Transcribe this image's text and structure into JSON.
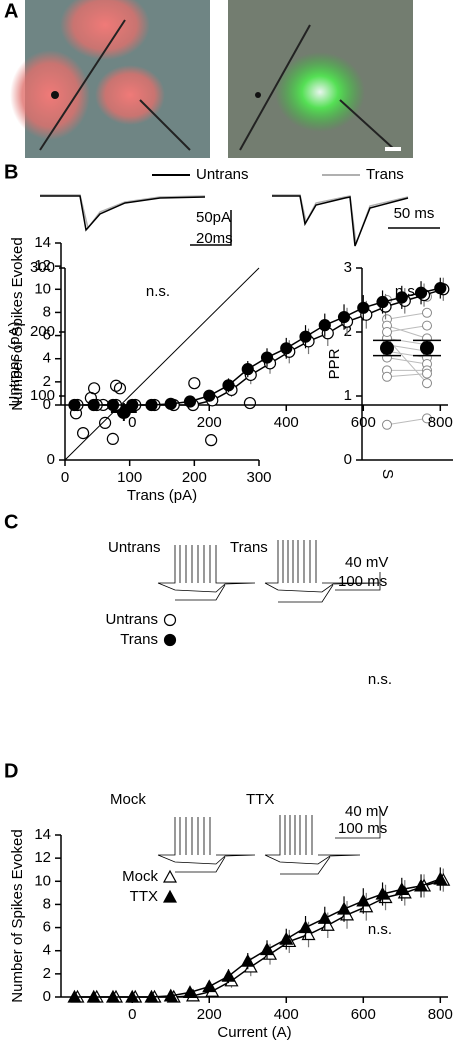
{
  "panel_labels": [
    "A",
    "B",
    "C",
    "D"
  ],
  "chart_data": [
    {
      "type": "traces",
      "series": [
        {
          "name": "Untrans",
          "color": "#000000"
        },
        {
          "name": "Trans",
          "color": "#b0b0b0"
        }
      ],
      "scale_labels": [
        "50pA",
        "20ms",
        "50 ms"
      ]
    },
    {
      "type": "scatter",
      "annotation": "n.s.",
      "xlabel": "Trans (pA)",
      "ylabel": "Untrans (pA)",
      "xlim": [
        0,
        300
      ],
      "ylim": [
        0,
        300
      ],
      "xticks": [
        0,
        100,
        200,
        300
      ],
      "yticks": [
        0,
        100,
        200,
        300
      ],
      "x": [
        17,
        28,
        40,
        45,
        59,
        62,
        74,
        79,
        85,
        200,
        226,
        286
      ],
      "values": [
        73,
        42,
        97,
        112,
        86,
        58,
        33,
        116,
        112,
        120,
        31,
        89
      ],
      "mean": {
        "x": 91,
        "y": 75,
        "xerr": 20,
        "yerr": 14
      }
    },
    {
      "type": "paired",
      "annotation": "n.s.",
      "ylabel": "PPR",
      "categories": [
        "S",
        null
      ],
      "ylim": [
        0,
        3
      ],
      "yticks": [
        0,
        1,
        2,
        3
      ],
      "pairs": [
        [
          2.5,
          2.55
        ],
        [
          2.2,
          2.3
        ],
        [
          2.1,
          1.9
        ],
        [
          1.9,
          1.8
        ],
        [
          1.8,
          1.7
        ],
        [
          1.7,
          1.6
        ],
        [
          1.6,
          1.5
        ],
        [
          1.4,
          1.4
        ],
        [
          1.3,
          1.35
        ],
        [
          1.9,
          1.2
        ],
        [
          0.55,
          0.65
        ],
        [
          2.0,
          2.1
        ]
      ],
      "means": [
        1.75,
        1.75
      ],
      "errors": [
        0.12,
        0.12
      ]
    },
    {
      "type": "line",
      "annotation": "n.s.",
      "ylabel": "Number of Spikes Evoked",
      "xlim": [
        -185,
        820
      ],
      "ylim": [
        0,
        14
      ],
      "xticks": [
        0,
        200,
        400,
        600,
        800
      ],
      "yticks": [
        0,
        2,
        4,
        6,
        8,
        10,
        12,
        14
      ],
      "inset_labels": [
        "Untrans",
        "Trans"
      ],
      "scale_labels": [
        "40 mV",
        "100 ms"
      ],
      "x": [
        -150,
        -100,
        -50,
        0,
        50,
        100,
        150,
        200,
        250,
        300,
        350,
        400,
        450,
        500,
        550,
        600,
        650,
        700,
        750,
        800
      ],
      "series": [
        {
          "name": "Untrans",
          "marker": "circle",
          "filled": false,
          "values": [
            0,
            0,
            0,
            0,
            0,
            0,
            0,
            0.4,
            1.3,
            2.6,
            3.6,
            4.6,
            5.5,
            6.2,
            7.2,
            7.8,
            8.5,
            9.0,
            9.5,
            10.0
          ],
          "errors": [
            0,
            0,
            0,
            0,
            0,
            0,
            0.1,
            0.4,
            0.6,
            0.8,
            0.9,
            1.0,
            1.1,
            1.1,
            1.2,
            1.2,
            1.1,
            1.1,
            1.0,
            1.0
          ]
        },
        {
          "name": "Trans",
          "marker": "circle",
          "filled": true,
          "values": [
            0,
            0,
            0,
            0,
            0,
            0.1,
            0.3,
            0.8,
            1.7,
            3.1,
            4.1,
            4.9,
            5.9,
            6.9,
            7.6,
            8.4,
            8.9,
            9.3,
            9.7,
            10.1
          ],
          "errors": [
            0,
            0,
            0,
            0,
            0,
            0.1,
            0.2,
            0.4,
            0.6,
            0.7,
            0.8,
            0.9,
            1.0,
            1.0,
            1.1,
            1.1,
            1.0,
            1.0,
            1.0,
            0.9
          ]
        }
      ]
    },
    {
      "type": "line",
      "annotation": "n.s.",
      "ylabel": "Number of Spikes Evoked",
      "xlabel": "Current (A)",
      "xlim": [
        -185,
        820
      ],
      "ylim": [
        0,
        14
      ],
      "xticks": [
        0,
        200,
        400,
        600,
        800
      ],
      "yticks": [
        0,
        2,
        4,
        6,
        8,
        10,
        12,
        14
      ],
      "inset_labels": [
        "Mock",
        "TTX"
      ],
      "scale_labels": [
        "40 mV",
        "100 ms"
      ],
      "x": [
        -150,
        -100,
        -50,
        0,
        50,
        100,
        150,
        200,
        250,
        300,
        350,
        400,
        450,
        500,
        550,
        600,
        650,
        700,
        750,
        800
      ],
      "series": [
        {
          "name": "Mock",
          "marker": "triangle",
          "filled": false,
          "values": [
            0,
            0,
            0,
            0,
            0,
            0,
            0.1,
            0.5,
            1.4,
            2.6,
            3.7,
            4.8,
            5.4,
            6.2,
            7.1,
            7.8,
            8.6,
            9.0,
            9.6,
            10.1
          ],
          "errors": [
            0,
            0,
            0,
            0,
            0,
            0,
            0.1,
            0.4,
            0.6,
            0.8,
            0.9,
            1.0,
            1.1,
            1.1,
            1.2,
            1.2,
            1.1,
            1.1,
            1.0,
            1.0
          ]
        },
        {
          "name": "TTX",
          "marker": "triangle",
          "filled": true,
          "values": [
            0,
            0,
            0,
            0,
            0,
            0.1,
            0.4,
            0.9,
            1.8,
            3.1,
            4.1,
            5.0,
            6.0,
            6.8,
            7.6,
            8.3,
            8.9,
            9.3,
            9.6,
            10.2
          ],
          "errors": [
            0,
            0,
            0,
            0,
            0,
            0.1,
            0.2,
            0.4,
            0.6,
            0.7,
            0.8,
            0.9,
            1.0,
            1.0,
            1.1,
            1.1,
            1.0,
            1.0,
            1.0,
            1.0
          ]
        }
      ]
    }
  ]
}
